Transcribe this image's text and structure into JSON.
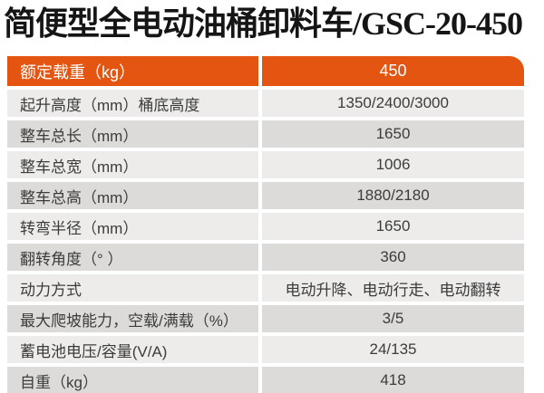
{
  "title": "简便型全电动油桶卸料车/GSC-20-450",
  "colors": {
    "accent": "#e35510",
    "row_light": "#edeceb",
    "row_dark": "#dcdbd9",
    "header_text": "#ffffff",
    "body_text": "#3c3c3c"
  },
  "table": {
    "header": {
      "label": "额定载重（kg）",
      "value": "450"
    },
    "rows": [
      {
        "label": "起升高度（mm）桶底高度",
        "value": "1350/2400/3000"
      },
      {
        "label": "整车总长（mm）",
        "value": "1650"
      },
      {
        "label": "整车总宽（mm）",
        "value": "1006"
      },
      {
        "label": "整车总高（mm）",
        "value": "1880/2180"
      },
      {
        "label": "转弯半径（mm）",
        "value": "1650"
      },
      {
        "label": "翻转角度（° ）",
        "value": "360"
      },
      {
        "label": "动力方式",
        "value": "电动升降、电动行走、电动翻转"
      },
      {
        "label": "最大爬坡能力，空载/满载（%）",
        "value": "3/5"
      },
      {
        "label": "蓄电池电压/容量(V/A)",
        "value": "24/135"
      },
      {
        "label": "自重（kg）",
        "value": "418"
      }
    ]
  }
}
